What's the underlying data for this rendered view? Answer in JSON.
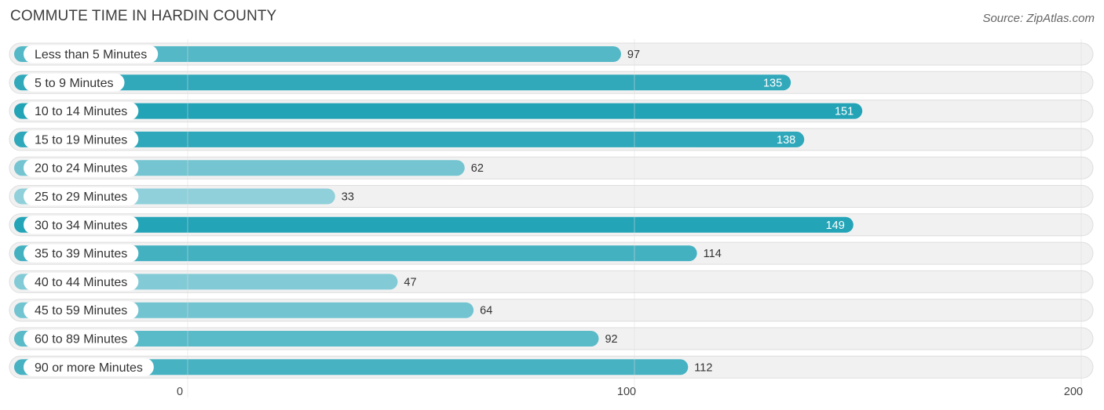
{
  "chart_data": {
    "type": "bar",
    "orientation": "horizontal",
    "title": "COMMUTE TIME IN HARDIN COUNTY",
    "source": "Source: ZipAtlas.com",
    "categories": [
      "Less than 5 Minutes",
      "5 to 9 Minutes",
      "10 to 14 Minutes",
      "15 to 19 Minutes",
      "20 to 24 Minutes",
      "25 to 29 Minutes",
      "30 to 34 Minutes",
      "35 to 39 Minutes",
      "40 to 44 Minutes",
      "45 to 59 Minutes",
      "60 to 89 Minutes",
      "90 or more Minutes"
    ],
    "values": [
      97,
      135,
      151,
      138,
      62,
      33,
      149,
      114,
      47,
      64,
      92,
      112
    ],
    "xlim": [
      0,
      200
    ],
    "ticks": [
      0,
      100,
      200
    ],
    "grid": true,
    "colors": {
      "bar_light": "#8fd0da",
      "bar_dark": "#22a3b6",
      "track": "#f1f1f1",
      "track_border": "#dedede",
      "gridline": "#dddddd"
    }
  }
}
